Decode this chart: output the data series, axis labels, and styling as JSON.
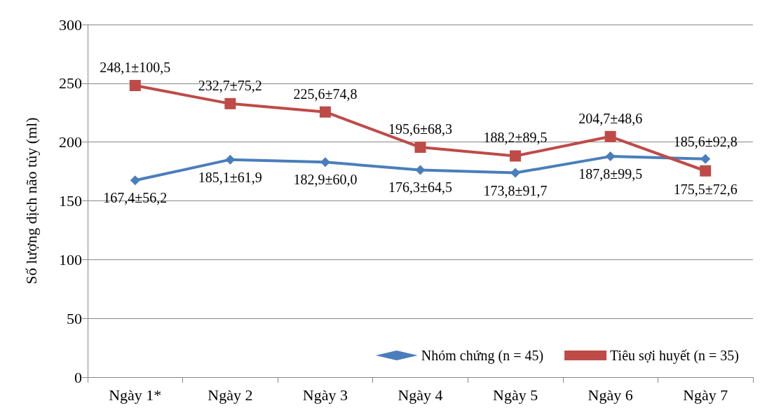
{
  "chart_data": {
    "type": "line",
    "ylabel": "Số lượng dịch não tủy (ml)",
    "categories": [
      "Ngày 1*",
      "Ngày 2",
      "Ngày 3",
      "Ngày 4",
      "Ngày 5",
      "Ngày 6",
      "Ngày 7"
    ],
    "series": [
      {
        "name": "Nhóm chứng (n = 45)",
        "color": "#4a7ebb",
        "marker": "diamond",
        "values": [
          167.4,
          185.1,
          182.9,
          176.3,
          173.8,
          187.8,
          185.6
        ],
        "value_labels": [
          "167,4±56,2",
          "185,1±61,9",
          "182,9±60,0",
          "176,3±64,5",
          "173,8±91,7",
          "187,8±99,5",
          "185,6±92,8"
        ]
      },
      {
        "name": "Tiêu sợi huyết (n = 35)",
        "color": "#be4b48",
        "marker": "square",
        "values": [
          248.1,
          232.7,
          225.6,
          195.6,
          188.2,
          204.7,
          175.5
        ],
        "value_labels": [
          "248,1±100,5",
          "232,7±75,2",
          "225,6±74,8",
          "195,6±68,3",
          "188,2±89,5",
          "204,7±48,6",
          "175,5±72,6"
        ]
      }
    ],
    "ylim": [
      0,
      300
    ],
    "yticks": [
      0,
      50,
      100,
      150,
      200,
      250,
      300
    ],
    "grid": "y",
    "legend": "bottom right",
    "line_style": "solid"
  }
}
